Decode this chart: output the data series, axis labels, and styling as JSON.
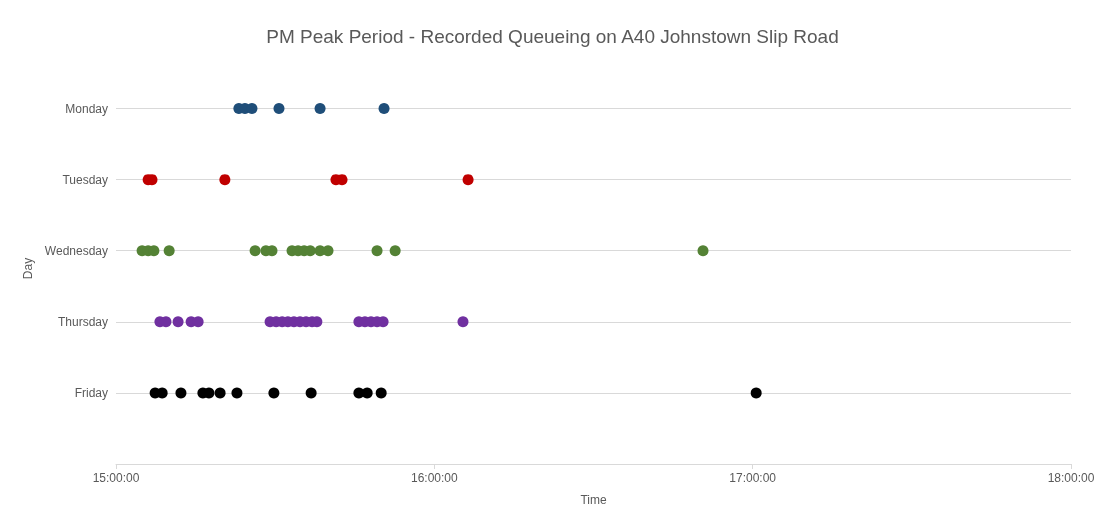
{
  "chart_data": {
    "type": "scatter",
    "title": "PM Peak Period - Recorded Queueing on A40 Johnstown Slip Road",
    "xlabel": "Time",
    "ylabel": "Day",
    "orientation": "horizontal",
    "categories": [
      "Monday",
      "Tuesday",
      "Wednesday",
      "Thursday",
      "Friday"
    ],
    "xlim": [
      15,
      18
    ],
    "xticks": [
      {
        "value": 15,
        "label": "15:00:00"
      },
      {
        "value": 16,
        "label": "16:00:00"
      },
      {
        "value": 17,
        "label": "17:00:00"
      },
      {
        "value": 18,
        "label": "18:00:00"
      }
    ],
    "grid": "y",
    "marker": "circle",
    "series": [
      {
        "color": "#1f4e79",
        "x": [
          "Monday",
          "Monday",
          "Monday",
          "Monday",
          "Monday",
          "Monday"
        ],
        "values": [
          15.386,
          15.405,
          15.427,
          15.512,
          15.641,
          15.842
        ]
      },
      {
        "color": "#c00000",
        "x": [
          "Tuesday",
          "Tuesday",
          "Tuesday",
          "Tuesday",
          "Tuesday",
          "Tuesday"
        ],
        "values": [
          15.101,
          15.113,
          15.342,
          15.691,
          15.71,
          16.106
        ]
      },
      {
        "color": "#548235",
        "x": [
          "Wednesday",
          "Wednesday",
          "Wednesday",
          "Wednesday",
          "Wednesday",
          "Wednesday",
          "Wednesday",
          "Wednesday",
          "Wednesday",
          "Wednesday",
          "Wednesday",
          "Wednesday",
          "Wednesday",
          "Wednesday",
          "Wednesday",
          "Wednesday"
        ],
        "values": [
          15.082,
          15.101,
          15.119,
          15.167,
          15.437,
          15.471,
          15.49,
          15.553,
          15.572,
          15.591,
          15.61,
          15.641,
          15.666,
          15.82,
          15.877,
          16.844
        ]
      },
      {
        "color": "#7030a0",
        "x": [
          "Thursday",
          "Thursday",
          "Thursday",
          "Thursday",
          "Thursday",
          "Thursday",
          "Thursday",
          "Thursday",
          "Thursday",
          "Thursday",
          "Thursday",
          "Thursday",
          "Thursday",
          "Thursday",
          "Thursday",
          "Thursday",
          "Thursday",
          "Thursday",
          "Thursday",
          "Thursday"
        ],
        "values": [
          15.138,
          15.157,
          15.195,
          15.236,
          15.258,
          15.484,
          15.503,
          15.522,
          15.54,
          15.559,
          15.578,
          15.597,
          15.616,
          15.631,
          15.763,
          15.782,
          15.801,
          15.82,
          15.839,
          16.09
        ]
      },
      {
        "color": "#000000",
        "x": [
          "Friday",
          "Friday",
          "Friday",
          "Friday",
          "Friday",
          "Friday",
          "Friday",
          "Friday",
          "Friday",
          "Friday",
          "Friday",
          "Friday",
          "Friday"
        ],
        "values": [
          15.123,
          15.145,
          15.204,
          15.273,
          15.292,
          15.327,
          15.38,
          15.496,
          15.613,
          15.763,
          15.789,
          15.833,
          17.011
        ]
      }
    ]
  }
}
